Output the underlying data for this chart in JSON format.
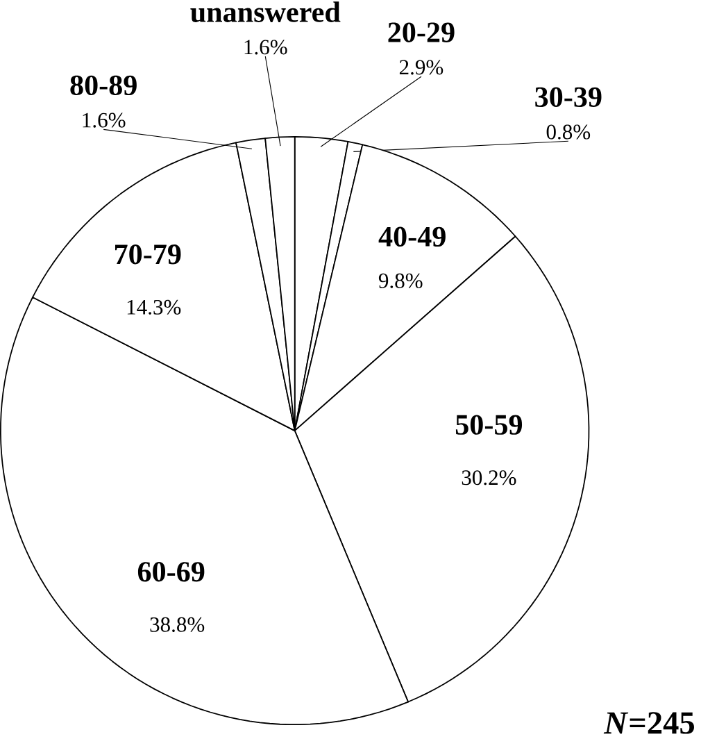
{
  "chart_data": {
    "type": "pie",
    "categories": [
      "20-29",
      "30-39",
      "40-49",
      "50-59",
      "60-69",
      "70-79",
      "80-89",
      "unanswered"
    ],
    "values": [
      2.9,
      0.8,
      9.8,
      30.2,
      38.8,
      14.3,
      1.6,
      1.6
    ],
    "value_labels": [
      "2.9%",
      "0.8%",
      "9.8%",
      "30.2%",
      "38.8%",
      "14.3%",
      "1.6%",
      "1.6%"
    ],
    "colors": [
      "#ffffff",
      "#ffffff",
      "#ffffff",
      "#ffffff",
      "#ffffff",
      "#ffffff",
      "#ffffff",
      "#ffffff"
    ],
    "annotations": [
      "*N*=245"
    ]
  }
}
